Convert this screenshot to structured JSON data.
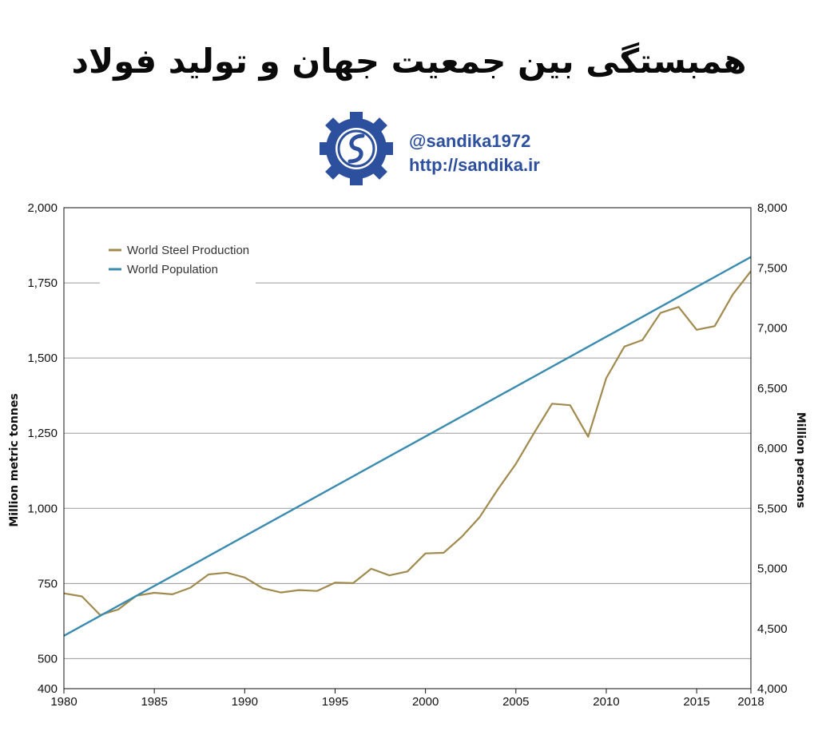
{
  "header": {
    "title": "همبستگی بین جمعیت جهان و تولید فولاد",
    "handle": "@sandika1972",
    "url": "http://sandika.ir",
    "logo_icon": "sandika-logo-icon"
  },
  "colors": {
    "steel": "#a08a4e",
    "population": "#3a8bb0",
    "grid": "#9a9a9a",
    "logo": "#2c4f9e"
  },
  "chart_data": {
    "type": "line",
    "xlabel": "",
    "ylabel_left": "Million metric tonnes",
    "ylabel_right": "Million persons",
    "xlim": [
      1980,
      2018
    ],
    "ylim_left": [
      400,
      2000
    ],
    "ylim_right": [
      4000,
      8000
    ],
    "x_ticks": [
      "1980",
      "1985",
      "1990",
      "1995",
      "2000",
      "2005",
      "2010",
      "2015",
      "2018"
    ],
    "y_left_ticks": [
      "400",
      "500",
      "750",
      "1,000",
      "1,250",
      "1,500",
      "1,750",
      "2,000"
    ],
    "y_right_ticks": [
      "4,000",
      "4,500",
      "5,000",
      "5,500",
      "6,000",
      "6,500",
      "7,000",
      "7,500",
      "8,000"
    ],
    "grid": true,
    "legend": "top-left",
    "series": [
      {
        "name": "World Steel Production",
        "axis": "left",
        "x": [
          1980,
          1981,
          1982,
          1983,
          1984,
          1985,
          1986,
          1987,
          1988,
          1989,
          1990,
          1991,
          1992,
          1993,
          1994,
          1995,
          1996,
          1997,
          1998,
          1999,
          2000,
          2001,
          2002,
          2003,
          2004,
          2005,
          2006,
          2007,
          2008,
          2009,
          2010,
          2011,
          2012,
          2013,
          2014,
          2015,
          2016,
          2017,
          2018
        ],
        "values": [
          717,
          707,
          645,
          663,
          709,
          719,
          714,
          736,
          780,
          786,
          770,
          734,
          720,
          728,
          725,
          753,
          751,
          799,
          777,
          790,
          850,
          852,
          905,
          971,
          1063,
          1148,
          1250,
          1348,
          1343,
          1238,
          1433,
          1538,
          1560,
          1650,
          1670,
          1594,
          1606,
          1712,
          1789
        ]
      },
      {
        "name": "World Population",
        "axis": "right",
        "x": [
          1980,
          2018
        ],
        "values": [
          4440,
          7590
        ]
      }
    ]
  }
}
